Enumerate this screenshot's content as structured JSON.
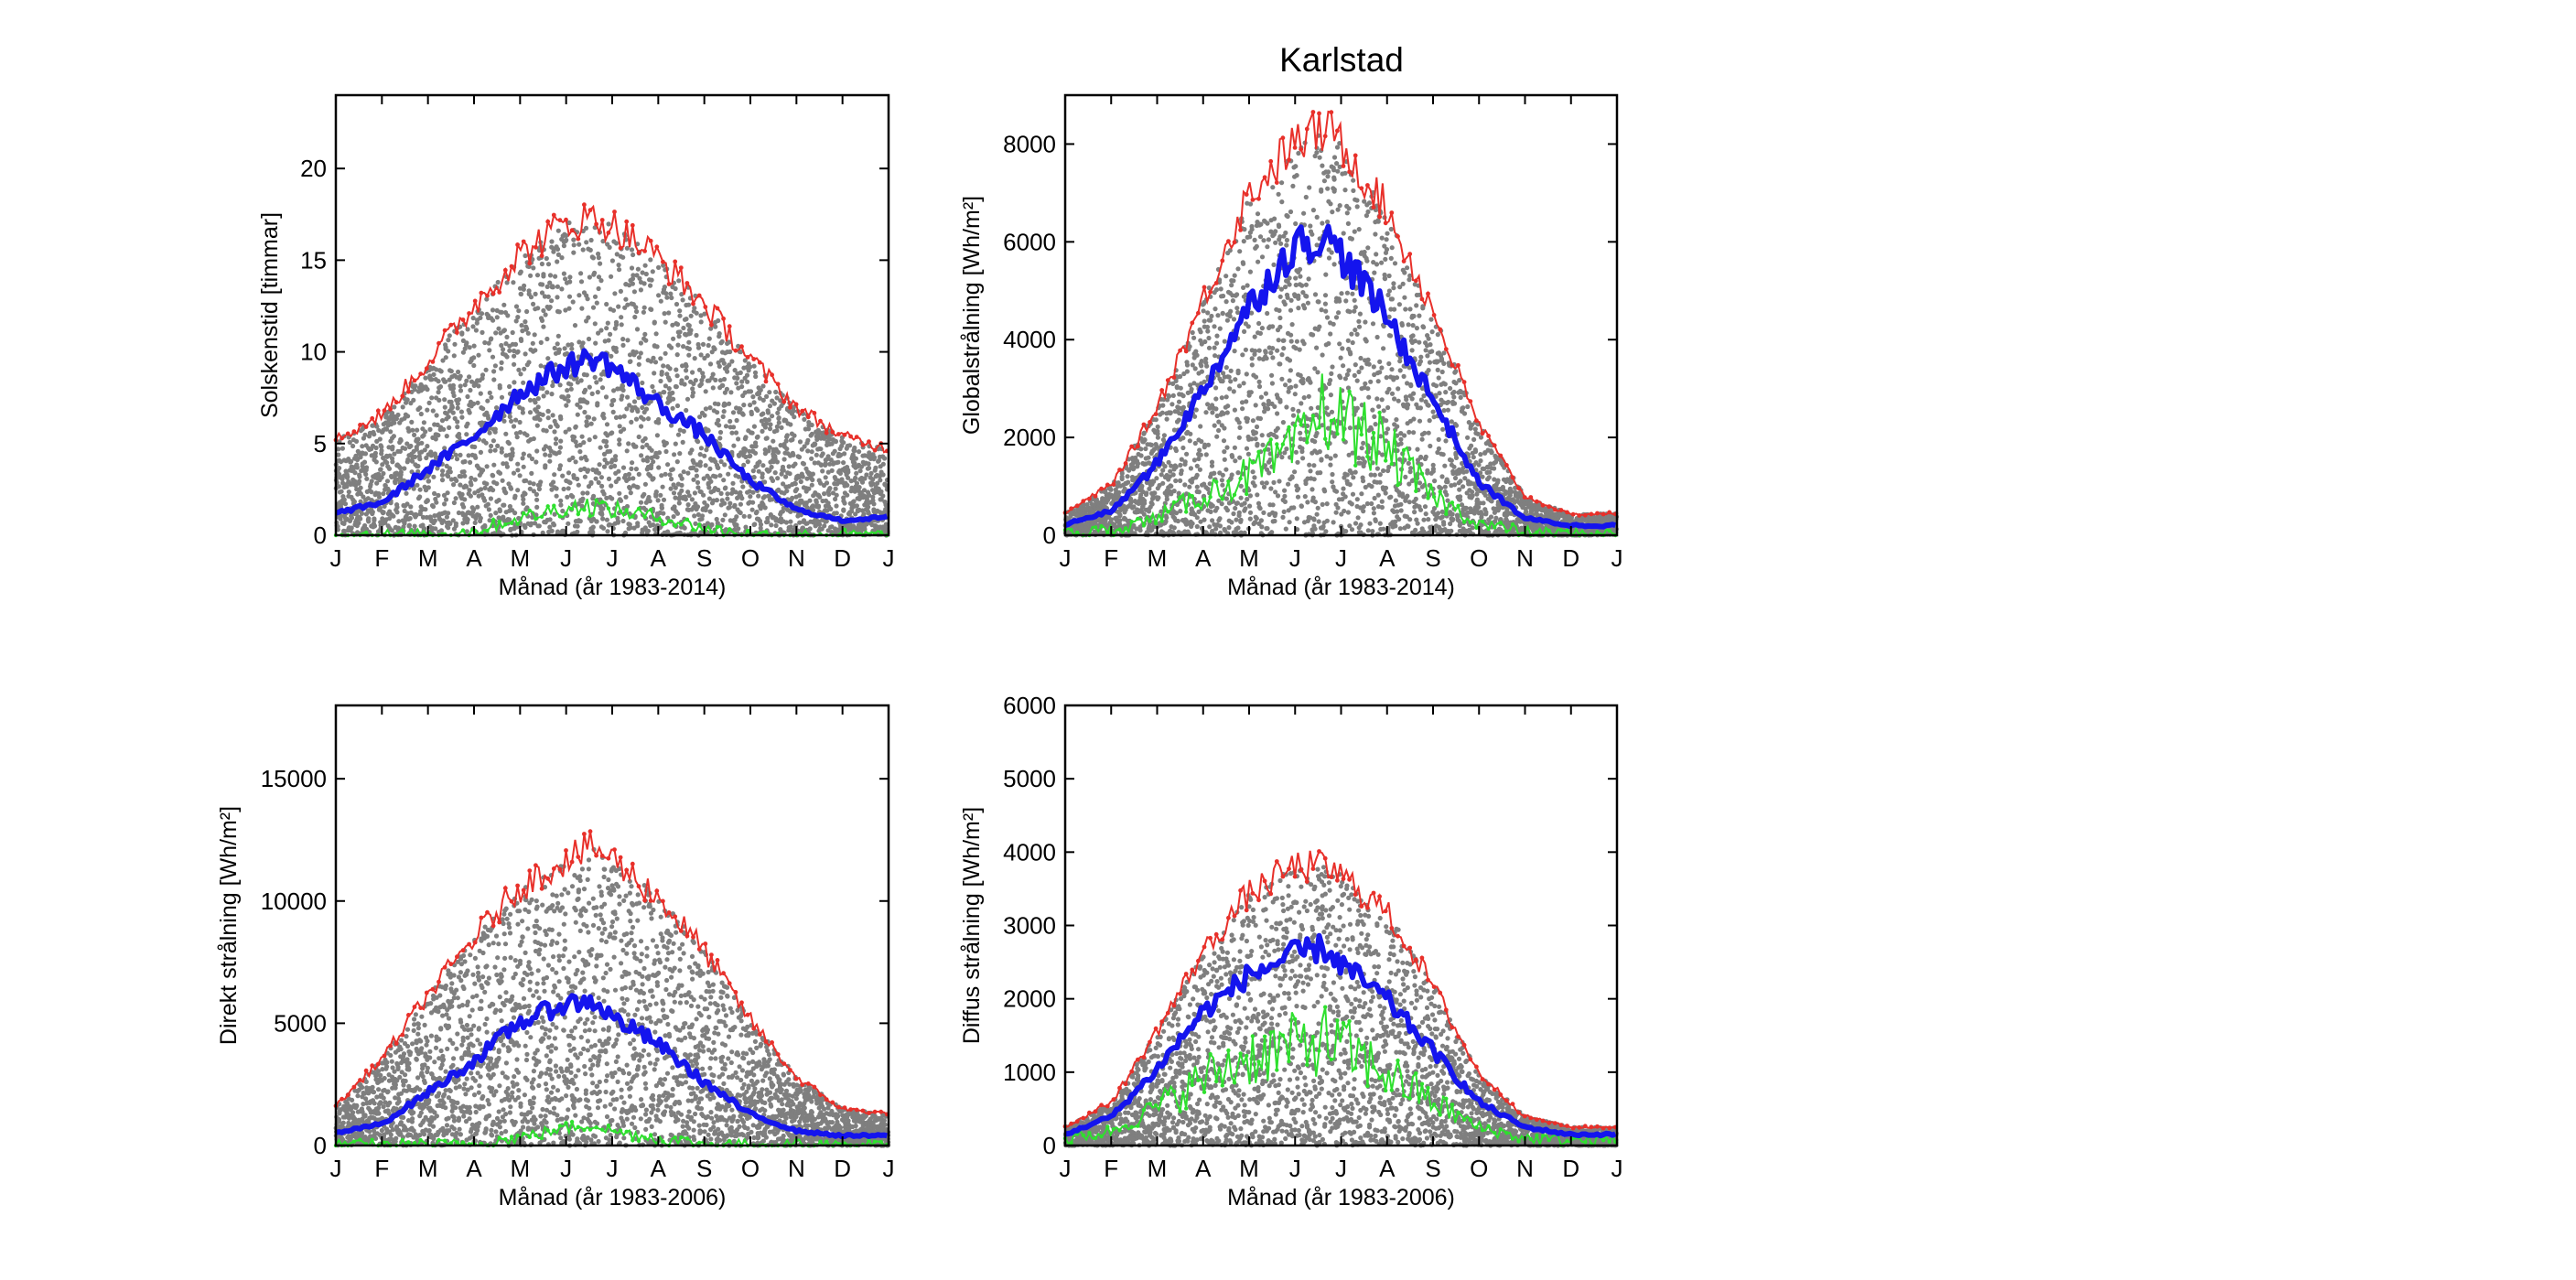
{
  "figure": {
    "title": "Karlstad",
    "colors": {
      "max": "#e8302a",
      "mean": "#1414ee",
      "min": "#2ee02e",
      "scatter": "#7f7f7f",
      "axis": "#000000",
      "background": "#ffffff"
    }
  },
  "chart_data": [
    {
      "id": "sunshine",
      "type": "scatter",
      "xlabel": "Månad (år 1983-2014)",
      "ylabel": "Solskenstid [timmar]",
      "x_ticks": [
        "J",
        "F",
        "M",
        "A",
        "M",
        "J",
        "J",
        "A",
        "S",
        "O",
        "N",
        "D",
        "J"
      ],
      "x_unit": "day of year",
      "xlim": [
        1,
        366
      ],
      "ylim": [
        0,
        24
      ],
      "y_ticks": [
        0,
        5,
        10,
        15,
        20
      ],
      "grid": false,
      "scatter_band": "daily values for every year, 0 up to the maximum curve",
      "series": [
        {
          "role": "max",
          "color": "#e8302a",
          "x": [
            1,
            32,
            60,
            91,
            121,
            152,
            172,
            182,
            213,
            244,
            274,
            305,
            335,
            366
          ],
          "y": [
            5.2,
            6.6,
            9.3,
            12.4,
            15.2,
            17.0,
            17.3,
            17.0,
            15.2,
            12.6,
            9.7,
            7.0,
            5.4,
            4.7
          ]
        },
        {
          "role": "mean",
          "color": "#1414ee",
          "x": [
            1,
            32,
            60,
            91,
            121,
            152,
            172,
            182,
            213,
            244,
            274,
            305,
            335,
            366
          ],
          "y": [
            1.2,
            1.8,
            3.5,
            5.3,
            7.7,
            9.2,
            9.7,
            9.3,
            7.2,
            5.5,
            3.0,
            1.4,
            0.8,
            1.0
          ]
        },
        {
          "role": "min",
          "color": "#2ee02e",
          "x": [
            1,
            32,
            60,
            91,
            121,
            152,
            172,
            182,
            213,
            244,
            274,
            305,
            335,
            366
          ],
          "y": [
            0,
            0,
            0,
            0.2,
            0.9,
            1.5,
            1.6,
            1.4,
            1.0,
            0.4,
            0,
            0,
            0,
            0
          ]
        }
      ]
    },
    {
      "id": "global",
      "type": "scatter",
      "xlabel": "Månad (år 1983-2014)",
      "ylabel": "Globalstrålning [Wh/m²]",
      "x_ticks": [
        "J",
        "F",
        "M",
        "A",
        "M",
        "J",
        "J",
        "A",
        "S",
        "O",
        "N",
        "D",
        "J"
      ],
      "x_unit": "day of year",
      "xlim": [
        1,
        366
      ],
      "ylim": [
        0,
        9000
      ],
      "y_ticks": [
        0,
        2000,
        4000,
        6000,
        8000
      ],
      "grid": false,
      "scatter_band": "daily values for every year, 0 up to the maximum curve",
      "series": [
        {
          "role": "max",
          "color": "#e8302a",
          "x": [
            1,
            32,
            60,
            91,
            121,
            152,
            172,
            182,
            213,
            244,
            274,
            305,
            335,
            366
          ],
          "y": [
            450,
            1050,
            2500,
            4700,
            6900,
            8000,
            8300,
            8100,
            6700,
            4600,
            2300,
            800,
            420,
            450
          ]
        },
        {
          "role": "mean",
          "color": "#1414ee",
          "x": [
            1,
            32,
            60,
            91,
            121,
            152,
            172,
            182,
            213,
            244,
            274,
            305,
            335,
            366
          ],
          "y": [
            220,
            500,
            1400,
            2900,
            4600,
            5900,
            6100,
            5800,
            4500,
            2800,
            1100,
            350,
            200,
            200
          ]
        },
        {
          "role": "min",
          "color": "#2ee02e",
          "x": [
            1,
            32,
            60,
            91,
            121,
            152,
            172,
            182,
            213,
            244,
            274,
            305,
            335,
            366
          ],
          "y": [
            30,
            100,
            350,
            800,
            1200,
            1700,
            2600,
            2400,
            1800,
            800,
            250,
            60,
            20,
            20
          ]
        }
      ]
    },
    {
      "id": "direct",
      "type": "scatter",
      "xlabel": "Månad (år 1983-2006)",
      "ylabel": "Direkt strålning [Wh/m²]",
      "x_ticks": [
        "J",
        "F",
        "M",
        "A",
        "M",
        "J",
        "J",
        "A",
        "S",
        "O",
        "N",
        "D",
        "J"
      ],
      "x_unit": "day of year",
      "xlim": [
        1,
        366
      ],
      "ylim": [
        0,
        18000
      ],
      "y_ticks": [
        0,
        5000,
        10000,
        15000
      ],
      "grid": false,
      "scatter_band": "daily values for every year, 0 up to the maximum curve",
      "series": [
        {
          "role": "max",
          "color": "#e8302a",
          "x": [
            1,
            32,
            60,
            91,
            121,
            152,
            172,
            182,
            213,
            244,
            274,
            305,
            335,
            366
          ],
          "y": [
            1600,
            3600,
            6000,
            8400,
            10500,
            11700,
            12200,
            11800,
            10200,
            8000,
            5200,
            2800,
            1500,
            1300
          ]
        },
        {
          "role": "mean",
          "color": "#1414ee",
          "x": [
            1,
            32,
            60,
            91,
            121,
            152,
            172,
            182,
            213,
            244,
            274,
            305,
            335,
            366
          ],
          "y": [
            500,
            900,
            2100,
            3400,
            5000,
            5800,
            5900,
            5300,
            4200,
            2600,
            1300,
            600,
            400,
            400
          ]
        },
        {
          "role": "min",
          "color": "#2ee02e",
          "x": [
            1,
            32,
            60,
            91,
            121,
            152,
            172,
            182,
            213,
            244,
            274,
            305,
            335,
            366
          ],
          "y": [
            0,
            0,
            0,
            50,
            300,
            700,
            900,
            600,
            300,
            50,
            0,
            0,
            0,
            0
          ]
        }
      ]
    },
    {
      "id": "diffuse",
      "type": "scatter",
      "xlabel": "Månad (år 1983-2006)",
      "ylabel": "Diffus strålning [Wh/m²]",
      "x_ticks": [
        "J",
        "F",
        "M",
        "A",
        "M",
        "J",
        "J",
        "A",
        "S",
        "O",
        "N",
        "D",
        "J"
      ],
      "x_unit": "day of year",
      "xlim": [
        1,
        366
      ],
      "ylim": [
        0,
        6000
      ],
      "y_ticks": [
        0,
        1000,
        2000,
        3000,
        4000,
        5000,
        6000
      ],
      "grid": false,
      "scatter_band": "daily values for every year, 0 up to the maximum curve",
      "series": [
        {
          "role": "max",
          "color": "#e8302a",
          "x": [
            1,
            32,
            60,
            91,
            121,
            152,
            172,
            182,
            213,
            244,
            274,
            305,
            335,
            366
          ],
          "y": [
            250,
            600,
            1500,
            2600,
            3400,
            3800,
            3800,
            3700,
            3200,
            2200,
            1000,
            400,
            250,
            250
          ]
        },
        {
          "role": "mean",
          "color": "#1414ee",
          "x": [
            1,
            32,
            60,
            91,
            121,
            152,
            172,
            182,
            213,
            244,
            274,
            305,
            335,
            366
          ],
          "y": [
            150,
            400,
            1000,
            1800,
            2300,
            2600,
            2700,
            2500,
            2000,
            1300,
            600,
            250,
            150,
            150
          ]
        },
        {
          "role": "min",
          "color": "#2ee02e",
          "x": [
            1,
            32,
            60,
            91,
            121,
            152,
            172,
            182,
            213,
            244,
            274,
            305,
            335,
            366
          ],
          "y": [
            80,
            200,
            500,
            900,
            1200,
            1350,
            1450,
            1350,
            1000,
            600,
            250,
            100,
            70,
            70
          ]
        }
      ]
    }
  ]
}
